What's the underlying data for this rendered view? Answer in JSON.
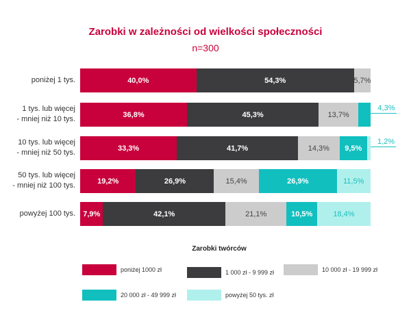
{
  "title": "Zarobki w zależności od wielkości społeczności",
  "subtitle": "n=300",
  "chart_data": {
    "type": "bar",
    "stacked": true,
    "orientation": "horizontal",
    "title": "Zarobki w zależności od wielkości społeczności",
    "subtitle": "n=300",
    "categories": [
      [
        "poniżej 1 tys."
      ],
      [
        "1 tys. lub więcej",
        "- mniej niż 10 tys."
      ],
      [
        "10 tys. lub więcej",
        "- mniej niż 50 tys."
      ],
      [
        "50 tys. lub więcej",
        "- mniej niż 100 tys."
      ],
      [
        "powyżej 100 tys."
      ]
    ],
    "legend_title": "Zarobki twórców",
    "series": [
      {
        "name": "poniżej 1000 zł",
        "color": "#c8003c",
        "text": "#ffffff",
        "values": [
          40.0,
          36.8,
          33.3,
          19.2,
          7.9
        ],
        "labels": [
          "40,0%",
          "36,8%",
          "33,3%",
          "19,2%",
          "7,9%"
        ]
      },
      {
        "name": "1 000 zł - 9 999 zł",
        "color": "#3c3c3e",
        "text": "#ffffff",
        "values": [
          54.3,
          45.3,
          41.7,
          26.9,
          42.1
        ],
        "labels": [
          "54,3%",
          "45,3%",
          "41,7%",
          "26,9%",
          "42,1%"
        ]
      },
      {
        "name": "10 000 zł - 19 999 zł",
        "color": "#cccccc",
        "text": "#444444",
        "values": [
          5.7,
          13.7,
          14.3,
          15.4,
          21.1
        ],
        "labels": [
          "5,7%",
          "13,7%",
          "14,3%",
          "15,4%",
          "21,1%"
        ]
      },
      {
        "name": "20 000 zł - 49 999 zł",
        "color": "#12bfbf",
        "text": "#ffffff",
        "values": [
          0,
          4.3,
          9.5,
          26.9,
          10.5
        ],
        "labels": [
          "",
          "4,3%",
          "9,5%",
          "26,9%",
          "10,5%"
        ]
      },
      {
        "name": "powyżej 50 tys. zł",
        "color": "#b0f0ec",
        "text": "#1bbfbf",
        "values": [
          0,
          0,
          1.2,
          11.5,
          18.4
        ],
        "labels": [
          "",
          "",
          "1,2%",
          "11,5%",
          "18,4%"
        ]
      }
    ],
    "outside_labels": [
      [
        1,
        3
      ],
      [
        2,
        4
      ]
    ],
    "xlim": [
      0,
      100
    ]
  }
}
